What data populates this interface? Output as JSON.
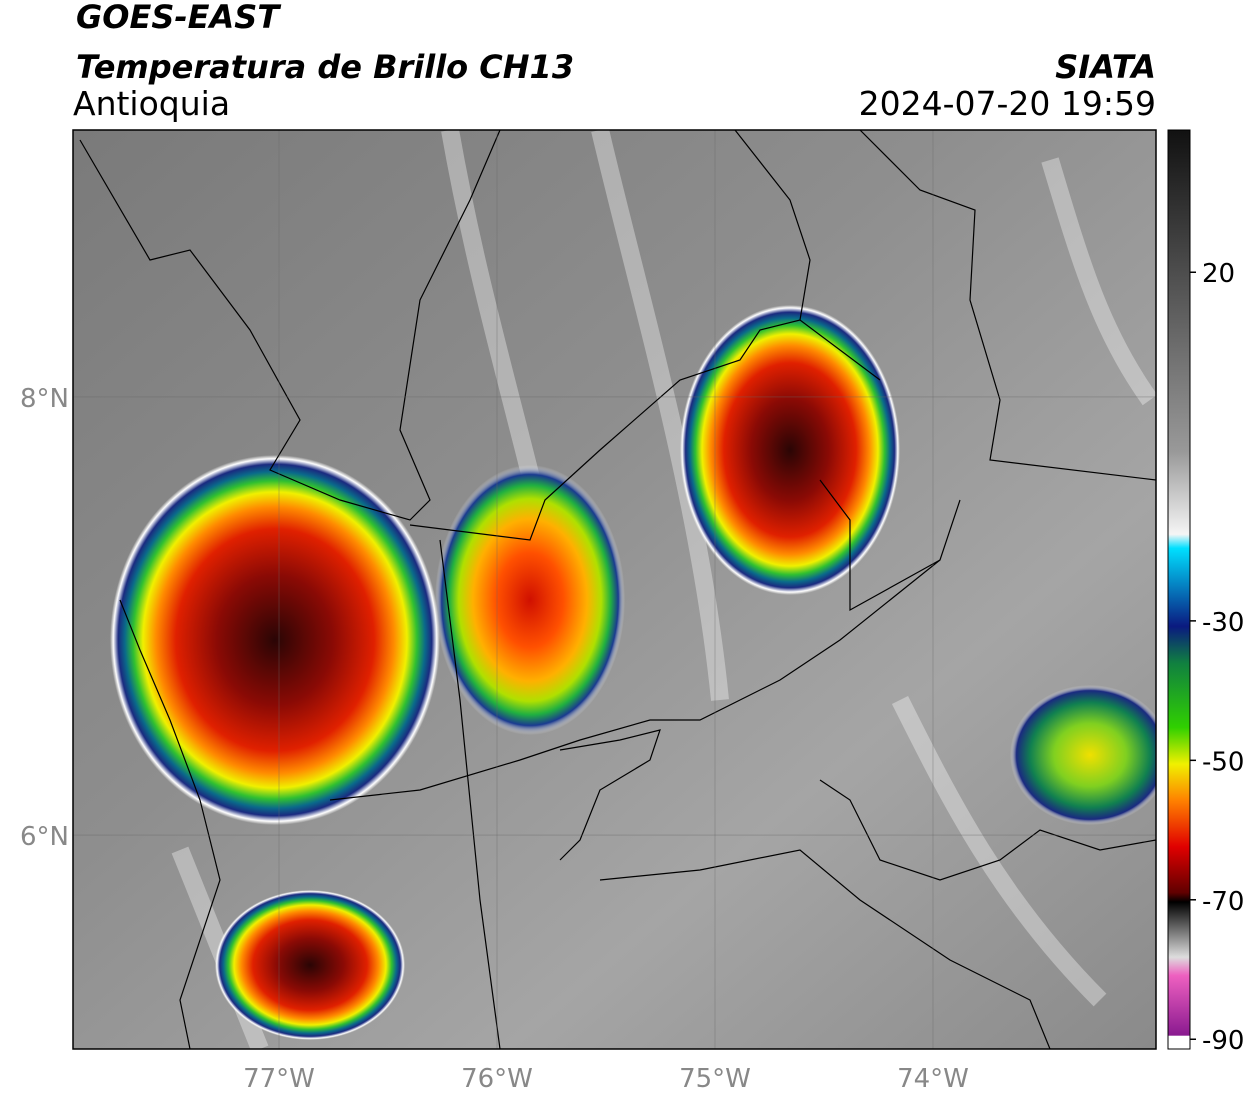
{
  "header": {
    "satellite": "GOES-EAST",
    "product": "Temperatura de Brillo CH13",
    "region": "Antioquia",
    "agency": "SIATA",
    "datetime": "2024-07-20 19:59"
  },
  "map": {
    "lon_range": [
      -77.945,
      -72.977
    ],
    "lat_range": [
      5.023,
      9.219
    ],
    "lon_ticks": [
      {
        "value": -77,
        "label": "77°W"
      },
      {
        "value": -76,
        "label": "76°W"
      },
      {
        "value": -75,
        "label": "75°W"
      },
      {
        "value": -74,
        "label": "74°W"
      }
    ],
    "lat_ticks": [
      {
        "value": 8,
        "label": "8°N"
      },
      {
        "value": 6,
        "label": "6°N"
      }
    ]
  },
  "colorbar": {
    "range": [
      -91.4,
      40.4
    ],
    "ticks": [
      20,
      -30,
      -50,
      -70,
      -90
    ]
  }
}
